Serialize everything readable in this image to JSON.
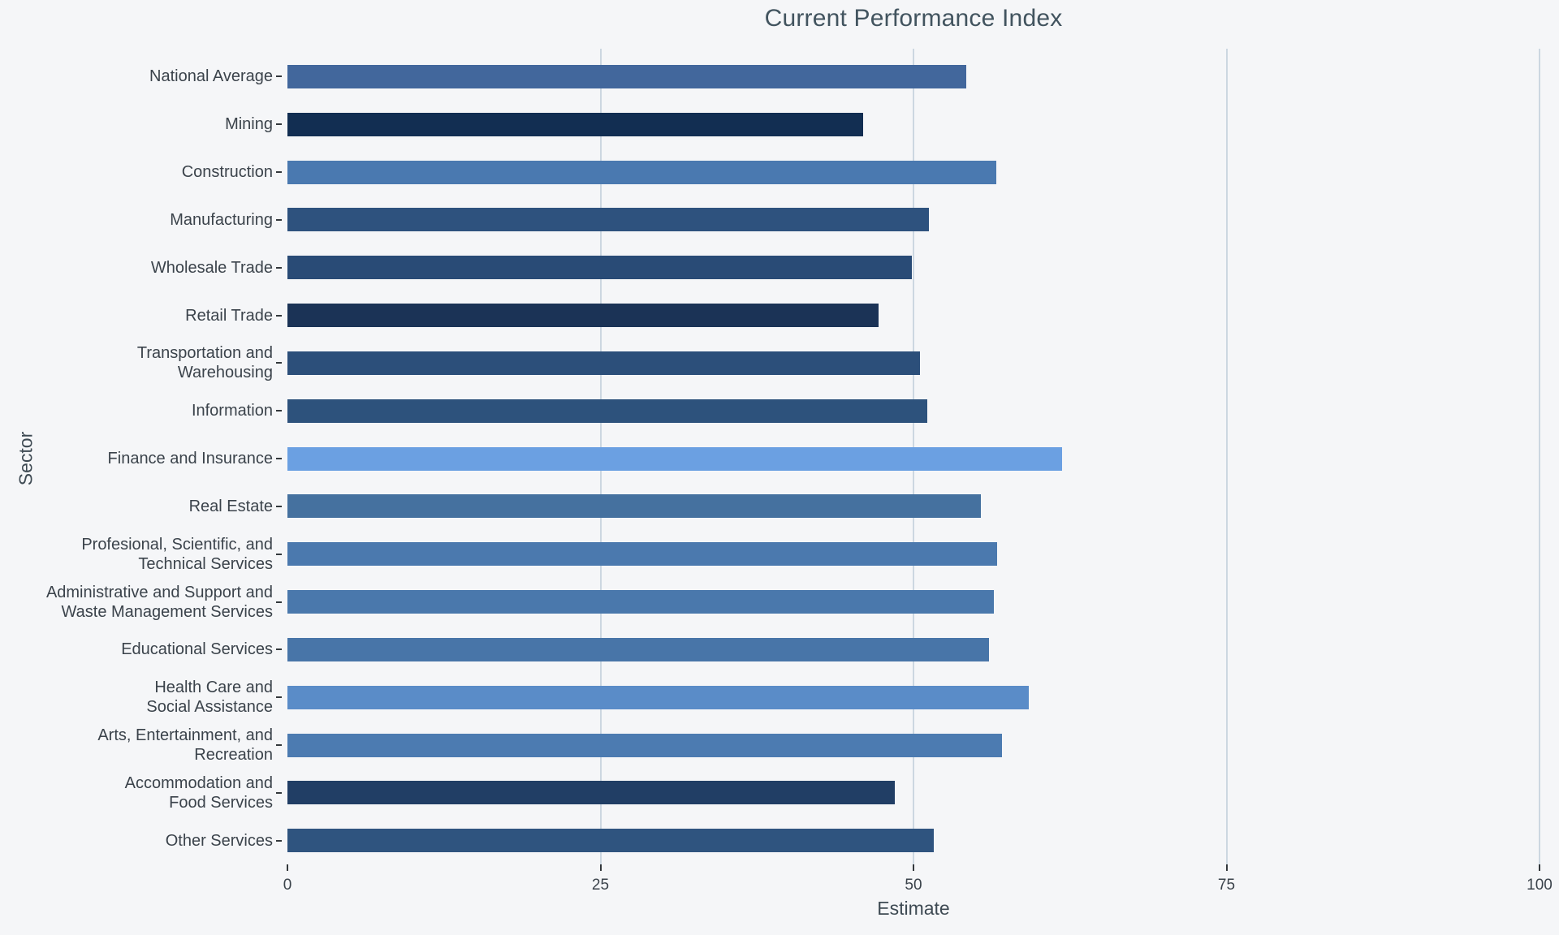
{
  "title": "Current Performance Index",
  "colors": {
    "background": "#f5f6f8",
    "gridline": "#ccd7e1",
    "axis_tick": "#33383c",
    "title_text": "#42545f",
    "label_text": "#3b434b",
    "axis_title_text": "#3e4a53"
  },
  "chart_data": {
    "type": "bar",
    "orientation": "horizontal",
    "title": "Current Performance Index",
    "xlabel": "Estimate",
    "ylabel": "Sector",
    "xlim": [
      0,
      100
    ],
    "xticks": [
      0,
      25,
      50,
      75,
      100
    ],
    "grid": true,
    "legend": false,
    "categories": [
      "National Average",
      "Mining",
      "Construction",
      "Manufacturing",
      "Wholesale Trade",
      "Retail Trade",
      "Transportation and\nWarehousing",
      "Information",
      "Finance and Insurance",
      "Real Estate",
      "Profesional, Scientific, and\nTechnical Services",
      "Administrative and Support and\nWaste Management Services",
      "Educational Services",
      "Health Care and\nSocial Assistance",
      "Arts, Entertainment, and\nRecreation",
      "Accommodation and\nFood Services",
      "Other Services"
    ],
    "values": [
      54.2,
      46.0,
      56.6,
      51.2,
      49.9,
      47.2,
      50.5,
      51.1,
      61.9,
      55.4,
      56.7,
      56.4,
      56.0,
      59.2,
      57.1,
      48.5,
      51.6
    ],
    "bar_colors": [
      "#42679c",
      "#122e52",
      "#4a79b0",
      "#2e527e",
      "#294b76",
      "#1b3356",
      "#2c4f7a",
      "#2d527c",
      "#6ba0e2",
      "#45719f",
      "#4b79ae",
      "#4a78ac",
      "#4875a8",
      "#5a8cc8",
      "#4c7bb1",
      "#213e65",
      "#2f547f"
    ]
  }
}
